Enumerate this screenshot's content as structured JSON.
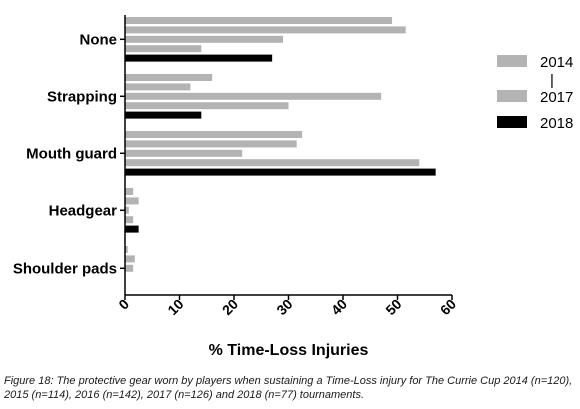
{
  "chart_data": {
    "type": "bar",
    "orientation": "horizontal",
    "categories": [
      "None",
      "Strapping",
      "Mouth guard",
      "Headgear",
      "Shoulder pads"
    ],
    "series": [
      {
        "year": "2014",
        "color": "#b3b3b3",
        "values": [
          49,
          16,
          32.5,
          1.5,
          0.5
        ]
      },
      {
        "year": "2015",
        "color": "#b3b3b3",
        "values": [
          51.5,
          12,
          31.5,
          2.5,
          1.8
        ]
      },
      {
        "year": "2016",
        "color": "#b3b3b3",
        "values": [
          29,
          47,
          21.5,
          0.7,
          1.5
        ]
      },
      {
        "year": "2017",
        "color": "#b3b3b3",
        "values": [
          14,
          30,
          54,
          1.5,
          null
        ]
      },
      {
        "year": "2018",
        "color": "#000000",
        "values": [
          27,
          14,
          57,
          2.5,
          null
        ]
      }
    ],
    "xlabel": "% Time-Loss Injuries",
    "xlim": [
      0,
      60
    ],
    "xticks": [
      "0",
      "10",
      "20",
      "30",
      "40",
      "50",
      "60"
    ],
    "legend": {
      "placement": "right",
      "entries": [
        {
          "label": "2014",
          "color": "#b3b3b3"
        },
        {
          "label": "|",
          "color": null
        },
        {
          "label": "2017",
          "color": "#b3b3b3"
        },
        {
          "label": "2018",
          "color": "#000000"
        }
      ]
    }
  },
  "caption": "Figure 18: The protective gear worn by players when sustaining a Time-Loss injury for The Currie Cup 2014 (n=120), 2015 (n=114), 2016 (n=142), 2017 (n=126) and 2018 (n=77) tournaments."
}
